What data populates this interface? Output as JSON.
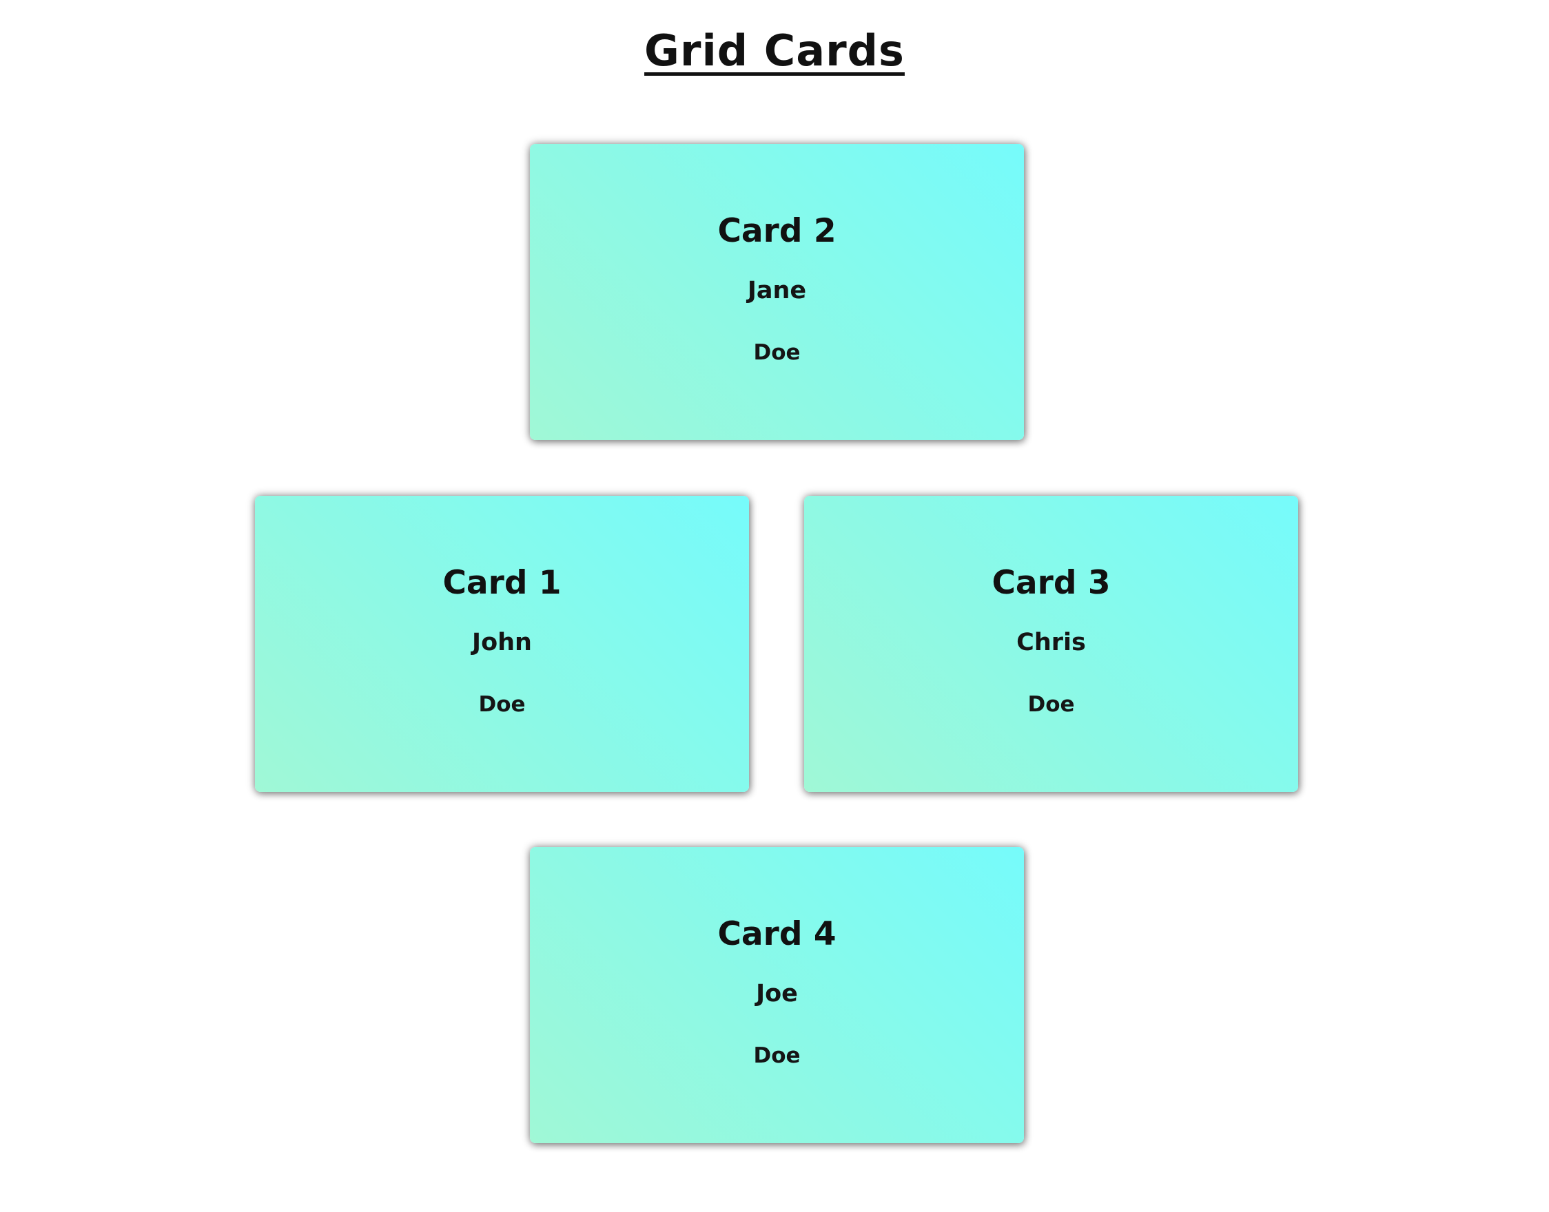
{
  "header": {
    "title": "Grid Cards"
  },
  "cards": [
    {
      "title": "Card 2",
      "first_name": "Jane",
      "last_name": "Doe"
    },
    {
      "title": "Card 1",
      "first_name": "John",
      "last_name": "Doe"
    },
    {
      "title": "Card 3",
      "first_name": "Chris",
      "last_name": "Doe"
    },
    {
      "title": "Card 4",
      "first_name": "Joe",
      "last_name": "Doe"
    }
  ],
  "colors": {
    "card_gradient_start": "#a0f8d6",
    "card_gradient_end": "#76fbfb",
    "text": "#111111",
    "background": "#ffffff"
  }
}
